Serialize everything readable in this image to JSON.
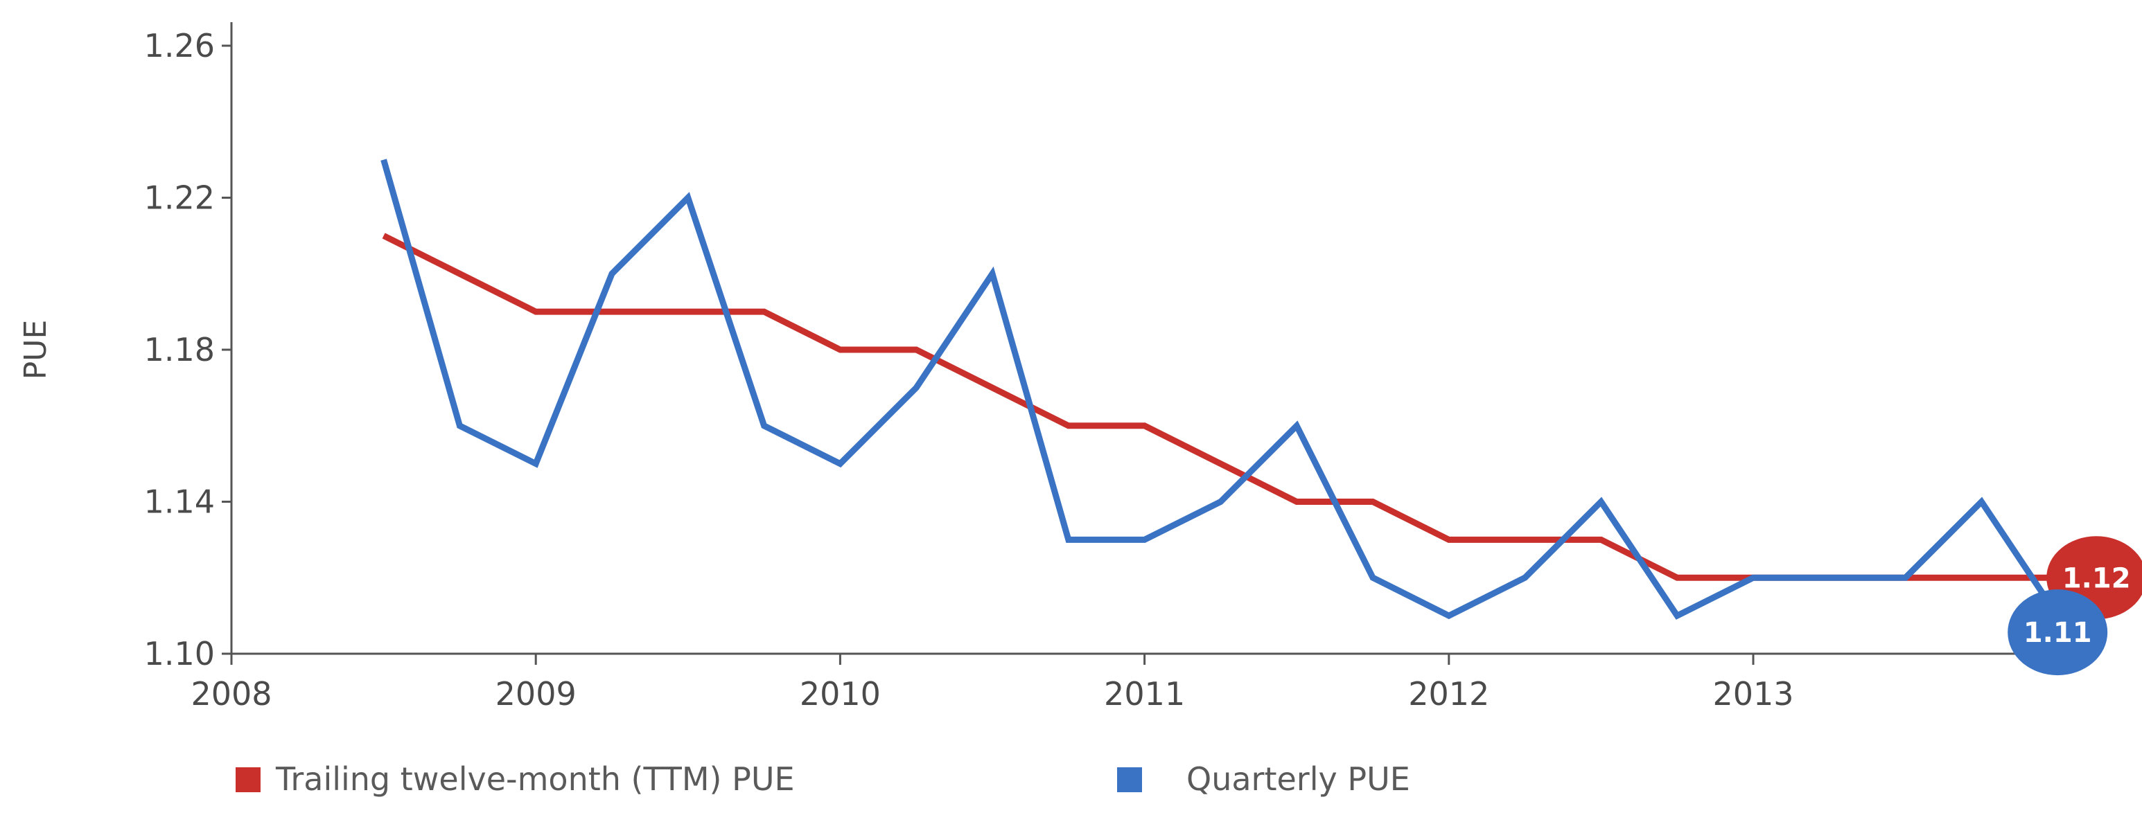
{
  "chart_data": {
    "type": "line",
    "title": "",
    "xlabel": "",
    "ylabel": "PUE",
    "xlim": [
      2008,
      2014.0
    ],
    "ylim": [
      1.1,
      1.26
    ],
    "x_ticks": [
      "2008",
      "2009",
      "2010",
      "2011",
      "2012",
      "2013"
    ],
    "y_ticks": [
      "1.26",
      "1.22",
      "1.18",
      "1.14",
      "1.10"
    ],
    "grid": false,
    "legend_position": "bottom",
    "colors": {
      "ttm": "#c9302c",
      "quarterly": "#3b73c4",
      "axis": "#555555"
    },
    "x": [
      2008.5,
      2008.75,
      2009.0,
      2009.25,
      2009.5,
      2009.75,
      2010.0,
      2010.25,
      2010.5,
      2010.75,
      2011.0,
      2011.25,
      2011.5,
      2011.75,
      2012.0,
      2012.25,
      2012.5,
      2012.75,
      2013.0,
      2013.25,
      2013.5,
      2013.75,
      2014.0
    ],
    "series": [
      {
        "name": "Trailing twelve-month (TTM) PUE",
        "values": [
          1.21,
          1.2,
          1.19,
          1.19,
          1.19,
          1.19,
          1.18,
          1.18,
          1.17,
          1.16,
          1.16,
          1.15,
          1.14,
          1.14,
          1.13,
          1.13,
          1.13,
          1.12,
          1.12,
          1.12,
          1.12,
          1.12,
          1.12
        ],
        "end_label": "1.12"
      },
      {
        "name": "Quarterly PUE",
        "values": [
          1.23,
          1.16,
          1.15,
          1.2,
          1.22,
          1.16,
          1.15,
          1.17,
          1.2,
          1.13,
          1.13,
          1.14,
          1.16,
          1.12,
          1.11,
          1.12,
          1.14,
          1.11,
          1.12,
          1.12,
          1.12,
          1.14,
          1.11
        ],
        "end_label": "1.11"
      }
    ]
  }
}
